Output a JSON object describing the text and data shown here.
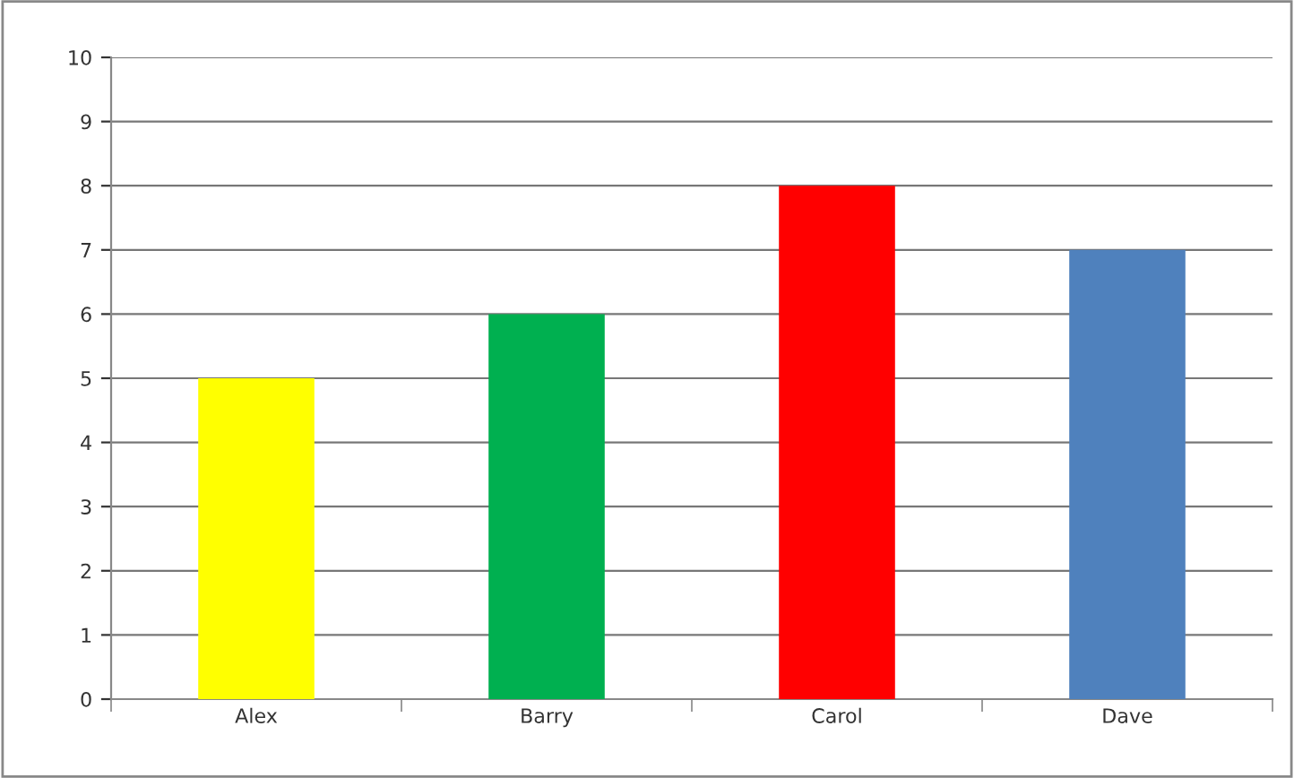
{
  "chart_data": {
    "type": "bar",
    "categories": [
      "Alex",
      "Barry",
      "Carol",
      "Dave"
    ],
    "values": [
      5,
      6,
      8,
      7
    ],
    "colors": [
      "#ffff00",
      "#00b050",
      "#ff0000",
      "#4f81bd"
    ],
    "ylim": [
      0,
      10
    ],
    "yticks": [
      0,
      1,
      2,
      3,
      4,
      5,
      6,
      7,
      8,
      9,
      10
    ],
    "grid": "y"
  }
}
